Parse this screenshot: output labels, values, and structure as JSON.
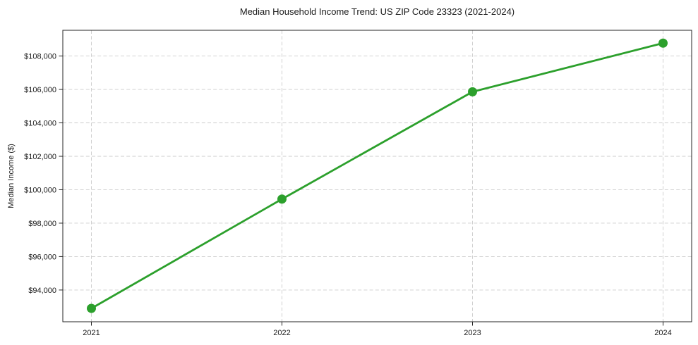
{
  "chart_data": {
    "type": "line",
    "title": "Median Household Income Trend: US ZIP Code 23323 (2021-2024)",
    "xlabel": "",
    "ylabel": "Median Income ($)",
    "x": [
      2021,
      2022,
      2023,
      2024
    ],
    "x_tick_labels": [
      "2021",
      "2022",
      "2023",
      "2024"
    ],
    "values": [
      92900,
      99440,
      105860,
      108770
    ],
    "y_ticks": [
      94000,
      96000,
      98000,
      100000,
      102000,
      104000,
      106000,
      108000
    ],
    "y_tick_labels": [
      "$94,000",
      "$96,000",
      "$98,000",
      "$100,000",
      "$102,000",
      "$104,000",
      "$106,000",
      "$108,000"
    ],
    "xlim": [
      2020.85,
      2024.15
    ],
    "ylim": [
      92100,
      109540
    ],
    "grid": true,
    "grid_color": "#cccccc",
    "line_color": "#2ca02c",
    "marker": "circle",
    "marker_color": "#2ca02c",
    "legend": "none",
    "background": "#ffffff",
    "spine_color": "#262626"
  }
}
